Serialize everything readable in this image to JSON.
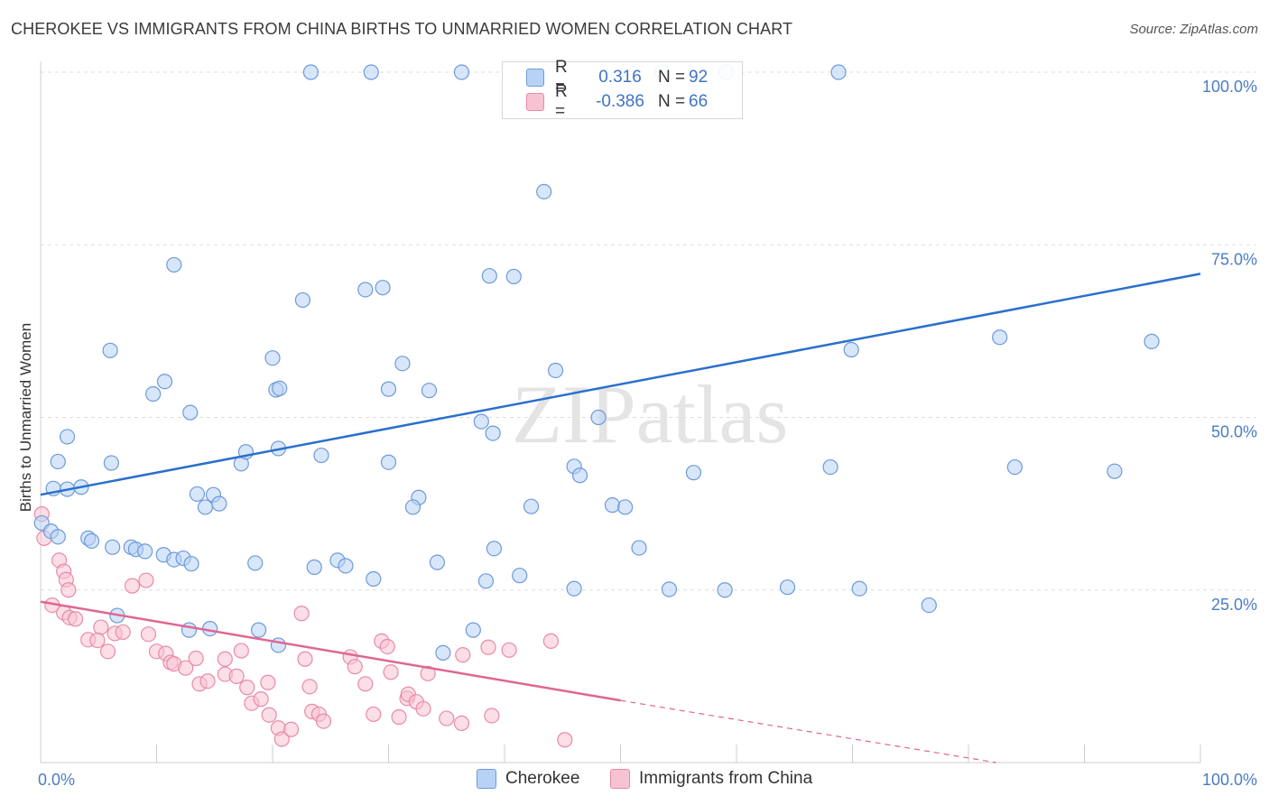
{
  "title": "CHEROKEE VS IMMIGRANTS FROM CHINA BIRTHS TO UNMARRIED WOMEN CORRELATION CHART",
  "source": "Source: ZipAtlas.com",
  "watermark": "ZIPatlas",
  "legend": {
    "cherokee": {
      "r_label": "R =",
      "r_value": "0.316",
      "n_label": "N =",
      "n_value": "92"
    },
    "china": {
      "r_label": "R =",
      "r_value": "-0.386",
      "n_label": "N =",
      "n_value": "66"
    }
  },
  "colors": {
    "cherokee_fill": "#b8d2f5",
    "cherokee_stroke": "#6d9ad8",
    "cherokee_line": "#2a6fcc",
    "china_fill": "#f7c3d2",
    "china_stroke": "#e98aa8",
    "china_line": "#e06690",
    "grid": "#dddddd",
    "tick_label": "#4a7cc4"
  },
  "chart_data": {
    "type": "scatter",
    "title": "CHEROKEE VS IMMIGRANTS FROM CHINA BIRTHS TO UNMARRIED WOMEN CORRELATION CHART",
    "xlabel": "",
    "ylabel": "Births to Unmarried Women",
    "xlim": [
      0,
      100
    ],
    "ylim": [
      0,
      100
    ],
    "y_ticks": [
      "25.0%",
      "50.0%",
      "75.0%",
      "100.0%"
    ],
    "y_tick_values": [
      25,
      50,
      75,
      100
    ],
    "x_tick_labels": [
      "0.0%",
      "100.0%"
    ],
    "x_tick_label_values": [
      0,
      100
    ],
    "grid": true,
    "legend_position": "top-center",
    "series": [
      {
        "name": "Cherokee",
        "points": [
          [
            23.3,
            100
          ],
          [
            28.5,
            100
          ],
          [
            36.3,
            100
          ],
          [
            53.6,
            100
          ],
          [
            59.1,
            100
          ],
          [
            68.8,
            100
          ],
          [
            43.4,
            82.7
          ],
          [
            11.5,
            72.1
          ],
          [
            38.7,
            70.5
          ],
          [
            40.8,
            70.4
          ],
          [
            22.6,
            67.0
          ],
          [
            28.0,
            68.5
          ],
          [
            29.5,
            68.8
          ],
          [
            6.0,
            59.7
          ],
          [
            20.0,
            58.6
          ],
          [
            31.2,
            57.8
          ],
          [
            44.4,
            56.8
          ],
          [
            69.9,
            59.8
          ],
          [
            82.7,
            61.6
          ],
          [
            95.8,
            61.0
          ],
          [
            10.7,
            55.2
          ],
          [
            20.3,
            54.0
          ],
          [
            20.6,
            54.2
          ],
          [
            30.0,
            54.1
          ],
          [
            33.5,
            53.9
          ],
          [
            9.7,
            53.4
          ],
          [
            12.9,
            50.7
          ],
          [
            38.0,
            49.4
          ],
          [
            39.0,
            47.7
          ],
          [
            48.1,
            50.0
          ],
          [
            2.3,
            47.2
          ],
          [
            1.5,
            43.6
          ],
          [
            6.1,
            43.4
          ],
          [
            17.3,
            43.3
          ],
          [
            17.7,
            45.0
          ],
          [
            20.5,
            45.5
          ],
          [
            24.2,
            44.5
          ],
          [
            30.0,
            43.5
          ],
          [
            46.0,
            42.9
          ],
          [
            46.5,
            41.6
          ],
          [
            56.3,
            42.0
          ],
          [
            68.1,
            42.8
          ],
          [
            84.0,
            42.8
          ],
          [
            92.6,
            42.2
          ],
          [
            1.1,
            39.7
          ],
          [
            2.3,
            39.6
          ],
          [
            3.5,
            39.9
          ],
          [
            13.5,
            38.9
          ],
          [
            14.9,
            38.8
          ],
          [
            15.4,
            37.5
          ],
          [
            14.2,
            37.0
          ],
          [
            32.6,
            38.4
          ],
          [
            32.1,
            37.0
          ],
          [
            42.3,
            37.1
          ],
          [
            49.3,
            37.3
          ],
          [
            50.4,
            37.0
          ],
          [
            39.1,
            31.0
          ],
          [
            51.6,
            31.1
          ],
          [
            0.1,
            34.7
          ],
          [
            0.9,
            33.5
          ],
          [
            1.5,
            32.7
          ],
          [
            4.1,
            32.5
          ],
          [
            4.4,
            32.1
          ],
          [
            6.2,
            31.2
          ],
          [
            7.8,
            31.2
          ],
          [
            8.2,
            30.9
          ],
          [
            9.0,
            30.6
          ],
          [
            10.6,
            30.1
          ],
          [
            11.5,
            29.4
          ],
          [
            12.3,
            29.6
          ],
          [
            13.0,
            28.8
          ],
          [
            18.5,
            28.9
          ],
          [
            23.6,
            28.3
          ],
          [
            25.6,
            29.3
          ],
          [
            26.3,
            28.5
          ],
          [
            34.2,
            29.0
          ],
          [
            28.7,
            26.6
          ],
          [
            38.4,
            26.3
          ],
          [
            41.3,
            27.1
          ],
          [
            46.0,
            25.2
          ],
          [
            54.2,
            25.1
          ],
          [
            59.0,
            25.0
          ],
          [
            64.4,
            25.4
          ],
          [
            70.6,
            25.2
          ],
          [
            76.6,
            22.8
          ],
          [
            6.6,
            21.3
          ],
          [
            12.8,
            19.2
          ],
          [
            14.6,
            19.4
          ],
          [
            18.8,
            19.2
          ],
          [
            20.5,
            17.0
          ],
          [
            34.7,
            15.9
          ],
          [
            37.3,
            19.2
          ]
        ]
      },
      {
        "name": "Immigrants from China",
        "points": [
          [
            0.1,
            36.0
          ],
          [
            0.3,
            32.5
          ],
          [
            1.6,
            29.3
          ],
          [
            2.0,
            27.7
          ],
          [
            2.2,
            26.5
          ],
          [
            2.4,
            25.0
          ],
          [
            1.0,
            22.8
          ],
          [
            2.0,
            21.7
          ],
          [
            2.5,
            21.0
          ],
          [
            3.0,
            20.8
          ],
          [
            4.1,
            17.8
          ],
          [
            5.2,
            19.6
          ],
          [
            4.9,
            17.7
          ],
          [
            5.8,
            16.1
          ],
          [
            6.4,
            18.7
          ],
          [
            7.1,
            18.9
          ],
          [
            7.9,
            25.6
          ],
          [
            9.1,
            26.4
          ],
          [
            9.3,
            18.6
          ],
          [
            10.0,
            16.1
          ],
          [
            10.8,
            15.8
          ],
          [
            11.2,
            14.5
          ],
          [
            11.5,
            14.3
          ],
          [
            12.5,
            13.7
          ],
          [
            13.4,
            15.1
          ],
          [
            13.7,
            11.4
          ],
          [
            14.4,
            11.8
          ],
          [
            15.9,
            12.8
          ],
          [
            15.9,
            15.0
          ],
          [
            16.9,
            12.5
          ],
          [
            17.3,
            16.2
          ],
          [
            17.8,
            10.9
          ],
          [
            18.2,
            8.6
          ],
          [
            19.0,
            9.2
          ],
          [
            19.6,
            11.6
          ],
          [
            19.7,
            6.9
          ],
          [
            20.5,
            5.0
          ],
          [
            20.8,
            3.4
          ],
          [
            21.6,
            4.8
          ],
          [
            22.5,
            21.6
          ],
          [
            22.8,
            15.0
          ],
          [
            23.2,
            11.0
          ],
          [
            23.4,
            7.4
          ],
          [
            24.0,
            7.0
          ],
          [
            24.4,
            6.0
          ],
          [
            26.7,
            15.3
          ],
          [
            27.1,
            13.9
          ],
          [
            28.0,
            11.4
          ],
          [
            28.7,
            7.0
          ],
          [
            29.4,
            17.6
          ],
          [
            29.9,
            16.8
          ],
          [
            30.2,
            13.1
          ],
          [
            30.9,
            6.6
          ],
          [
            31.6,
            9.3
          ],
          [
            31.7,
            9.9
          ],
          [
            32.4,
            8.8
          ],
          [
            33.0,
            7.8
          ],
          [
            33.4,
            12.9
          ],
          [
            35.0,
            6.4
          ],
          [
            36.3,
            5.7
          ],
          [
            36.4,
            15.6
          ],
          [
            38.6,
            16.7
          ],
          [
            38.9,
            6.8
          ],
          [
            40.4,
            16.3
          ],
          [
            44.0,
            17.6
          ],
          [
            45.2,
            3.3
          ]
        ]
      }
    ],
    "trendlines": [
      {
        "series": "Cherokee",
        "x": [
          0,
          100
        ],
        "y": [
          38.8,
          70.8
        ]
      },
      {
        "series": "Immigrants from China",
        "x": [
          0,
          50
        ],
        "y": [
          23.3,
          9.0
        ],
        "dashed_extension_to": [
          82.4,
          0
        ]
      }
    ]
  },
  "bottom_legend": [
    "Cherokee",
    "Immigrants from China"
  ]
}
